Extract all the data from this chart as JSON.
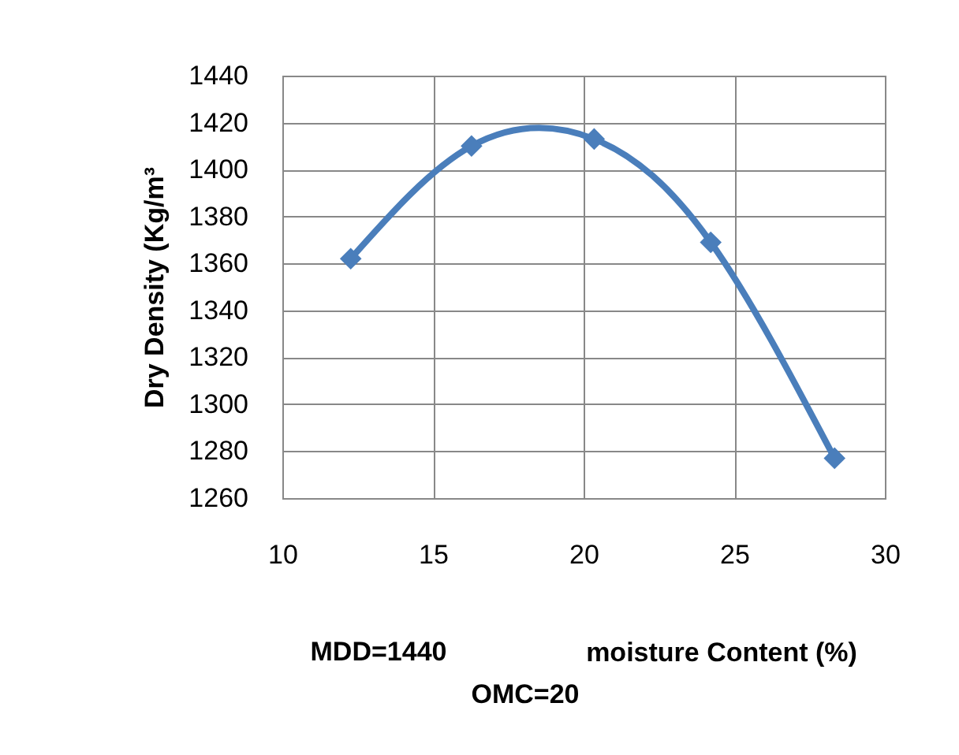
{
  "chart_data": {
    "type": "line",
    "xlabel": "moisture Content (%)",
    "ylabel": "Dry Density (Kg/m³",
    "annotations": [
      "MDD=1440",
      "OMC=20"
    ],
    "x": [
      12.27,
      16.28,
      20.35,
      24.22,
      28.33
    ],
    "series": [
      {
        "color": "#4a7ebb",
        "values": [
          1362,
          1410,
          1413,
          1369,
          1277
        ]
      }
    ],
    "xlim": [
      10,
      30
    ],
    "xticks": [
      10,
      15,
      20,
      25,
      30
    ],
    "ylim": [
      1260,
      1440
    ],
    "yticks": [
      1260,
      1280,
      1300,
      1320,
      1340,
      1360,
      1380,
      1400,
      1420,
      1440
    ],
    "grid": true,
    "legend": false,
    "marker": "diamond",
    "line_style": "solid"
  }
}
